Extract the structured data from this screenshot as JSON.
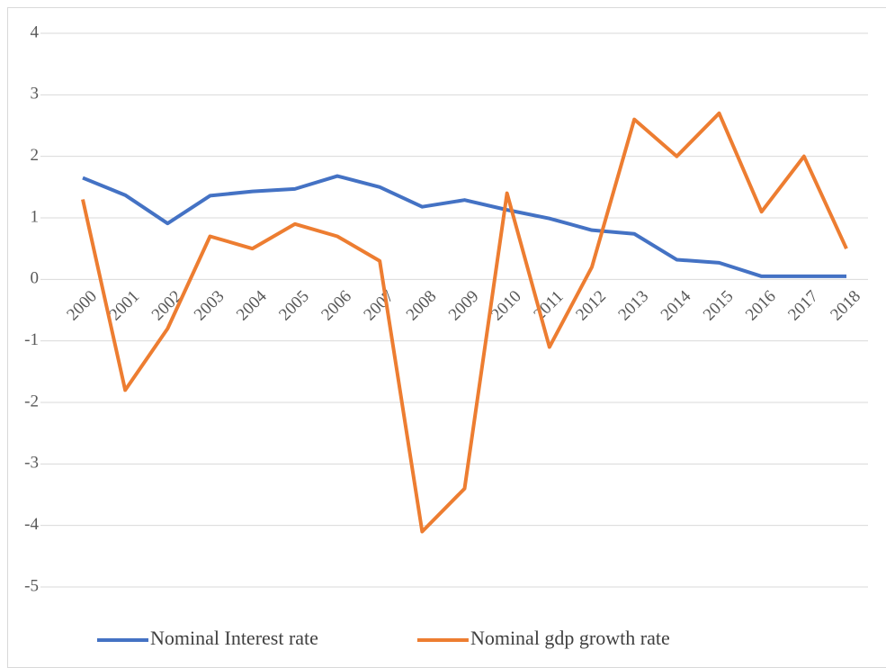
{
  "chart_data": {
    "type": "line",
    "categories": [
      "2000",
      "2001",
      "2002",
      "2003",
      "2004",
      "2005",
      "2006",
      "2007",
      "2008",
      "2009",
      "2010",
      "2011",
      "2012",
      "2013",
      "2014",
      "2015",
      "2016",
      "2017",
      "2018"
    ],
    "series": [
      {
        "name": "Nominal Interest rate",
        "color": "#4472c4",
        "values": [
          1.65,
          1.37,
          0.91,
          1.36,
          1.43,
          1.47,
          1.68,
          1.5,
          1.18,
          1.29,
          1.13,
          0.99,
          0.8,
          0.74,
          0.32,
          0.27,
          0.05,
          0.05,
          0.05
        ]
      },
      {
        "name": "Nominal gdp growth rate",
        "color": "#ed7d31",
        "values": [
          1.3,
          -1.8,
          -0.8,
          0.7,
          0.5,
          0.9,
          0.7,
          0.3,
          -4.1,
          -3.4,
          1.4,
          -1.1,
          0.2,
          2.6,
          2.0,
          2.7,
          1.1,
          2.0,
          0.5
        ]
      }
    ],
    "ylim": [
      -5,
      4
    ],
    "yticks": [
      -5,
      -4,
      -3,
      -2,
      -1,
      0,
      1,
      2,
      3,
      4
    ],
    "grid": true,
    "legend": "bottom"
  }
}
